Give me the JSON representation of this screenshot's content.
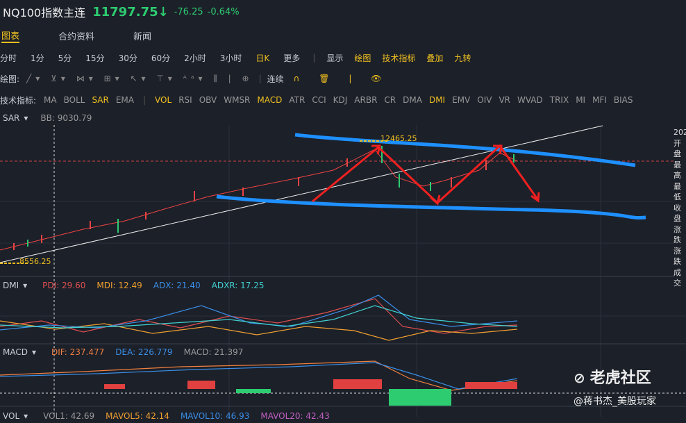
{
  "header": {
    "symbol": "NQ100指数主连",
    "price": "11797.75↓",
    "change": "-76.25",
    "change_pct": "-0.64%"
  },
  "tabs": [
    "图表",
    "合约资料",
    "新闻"
  ],
  "periods": [
    "分时",
    "1分",
    "5分",
    "15分",
    "30分",
    "60分",
    "2小时",
    "3小时",
    "日K",
    "更多"
  ],
  "period_tools": [
    "显示",
    "绘图",
    "技术指标",
    "叠加",
    "九转"
  ],
  "draw_toolbar": {
    "label": "绘图:",
    "continuous": "连续"
  },
  "indicators": {
    "label": "技术指标:",
    "items": [
      "MA",
      "BOLL",
      "SAR",
      "EMA",
      "VOL",
      "RSI",
      "OBV",
      "WMSR",
      "MACD",
      "ATR",
      "CCI",
      "KDJ",
      "ARBR",
      "CR",
      "DMA",
      "DMI",
      "EMV",
      "OIV",
      "VR",
      "WVAD",
      "TRIX",
      "MI",
      "MFI",
      "BIAS"
    ]
  },
  "main_panel": {
    "name": "SAR",
    "bb": "BB: 9030.79",
    "high_label": "12465.25",
    "low_label": "8556.25",
    "info": [
      "202",
      "开盘",
      "最高",
      "最低",
      "收盘",
      "涨跌",
      "涨跌",
      "成交"
    ]
  },
  "dmi_panel": {
    "name": "DMI",
    "items": [
      "PDI: 29.60",
      "MDI: 12.49",
      "ADX: 21.40",
      "ADXR: 17.25"
    ]
  },
  "macd_panel": {
    "name": "MACD",
    "items": [
      "DIF: 237.477",
      "DEA: 226.779",
      "MACD: 21.397"
    ]
  },
  "vol_panel": {
    "name": "VOL",
    "items": [
      "VOL1: 42.69",
      "MAVOL5: 42.14",
      "MAVOL10: 46.93",
      "MAVOL20: 42.43"
    ]
  },
  "watermark": {
    "brand": "老虎社区",
    "author": "@蒋书杰_美股玩家"
  }
}
